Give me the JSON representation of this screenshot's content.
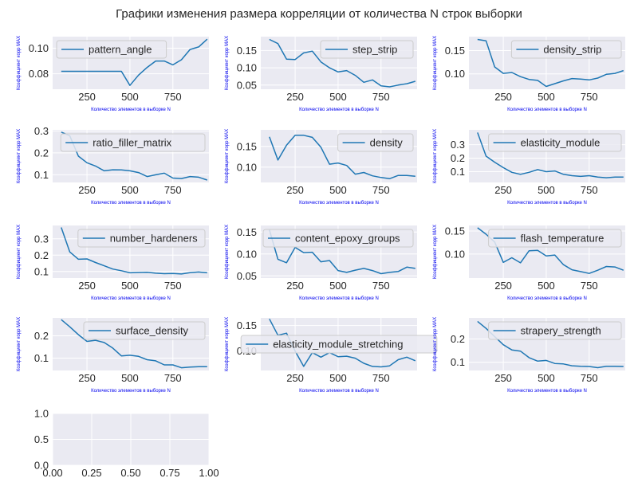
{
  "figure": {
    "suptitle": "Графики изменения размера корреляции от количества  N строк выборки",
    "style": {
      "panel_bg": "#eaeaf2",
      "grid": "#ffffff",
      "line": "#1f77b4",
      "label_color": "#0000ee",
      "tick_color": "#262626"
    }
  },
  "chart_data": [
    {
      "type": "line",
      "xlabel": "Количество элементов в выборке N",
      "ylabel": "Коэффициент корр MAX",
      "xlim": [
        50,
        960
      ],
      "ylim": [
        0.068,
        0.109
      ],
      "xticks": [
        250,
        500,
        750
      ],
      "yticks": [
        0.08,
        0.1
      ],
      "ytick_labels": [
        "0.08",
        "0.10"
      ],
      "legend_loc": "top-left",
      "series": [
        {
          "name": "pattern_angle",
          "x": [
            100,
            150,
            200,
            250,
            300,
            350,
            400,
            450,
            500,
            550,
            600,
            650,
            700,
            750,
            800,
            850,
            900,
            950
          ],
          "y": [
            0.082,
            0.082,
            0.082,
            0.082,
            0.082,
            0.082,
            0.082,
            0.082,
            0.071,
            0.079,
            0.085,
            0.09,
            0.09,
            0.087,
            0.091,
            0.099,
            0.101,
            0.107
          ]
        }
      ]
    },
    {
      "type": "line",
      "xlabel": "Количество элементов в выборке N",
      "ylabel": "Коэффициент корр MAX",
      "xlim": [
        50,
        960
      ],
      "ylim": [
        0.038,
        0.19
      ],
      "xticks": [
        250,
        500,
        750
      ],
      "yticks": [
        0.05,
        0.1,
        0.15
      ],
      "ytick_labels": [
        "0.05",
        "0.10",
        "0.15"
      ],
      "legend_loc": "top-right",
      "series": [
        {
          "name": "step_strip",
          "x": [
            100,
            150,
            200,
            250,
            300,
            350,
            400,
            450,
            500,
            550,
            600,
            650,
            700,
            750,
            800,
            850,
            900,
            950
          ],
          "y": [
            0.182,
            0.17,
            0.125,
            0.124,
            0.143,
            0.148,
            0.117,
            0.1,
            0.088,
            0.092,
            0.078,
            0.058,
            0.065,
            0.048,
            0.045,
            0.05,
            0.054,
            0.061
          ]
        }
      ]
    },
    {
      "type": "line",
      "xlabel": "Количество элементов в выборке N",
      "ylabel": "Коэффициент корр MAX",
      "xlim": [
        50,
        960
      ],
      "ylim": [
        0.067,
        0.18
      ],
      "xticks": [
        250,
        500,
        750
      ],
      "yticks": [
        0.1,
        0.15
      ],
      "ytick_labels": [
        "0.10",
        "0.15"
      ],
      "legend_loc": "top-right",
      "series": [
        {
          "name": "density_strip",
          "x": [
            100,
            150,
            200,
            250,
            300,
            350,
            400,
            450,
            500,
            550,
            600,
            650,
            700,
            750,
            800,
            850,
            900,
            950
          ],
          "y": [
            0.174,
            0.171,
            0.115,
            0.101,
            0.103,
            0.094,
            0.088,
            0.086,
            0.073,
            0.079,
            0.085,
            0.09,
            0.089,
            0.087,
            0.091,
            0.099,
            0.101,
            0.107
          ]
        }
      ]
    },
    {
      "type": "line",
      "xlabel": "Количество элементов в выборке N",
      "ylabel": "Коэффициент корр MAX",
      "xlim": [
        50,
        960
      ],
      "ylim": [
        0.065,
        0.305
      ],
      "xticks": [
        250,
        500,
        750
      ],
      "yticks": [
        0.1,
        0.2,
        0.3
      ],
      "ytick_labels": [
        "0.1",
        "0.2",
        "0.3"
      ],
      "legend_loc": "top-right",
      "series": [
        {
          "name": "ratio_filler_matrix",
          "x": [
            100,
            150,
            200,
            250,
            300,
            350,
            400,
            450,
            500,
            550,
            600,
            650,
            700,
            750,
            800,
            850,
            900,
            950
          ],
          "y": [
            0.295,
            0.278,
            0.185,
            0.155,
            0.14,
            0.118,
            0.123,
            0.122,
            0.118,
            0.11,
            0.092,
            0.1,
            0.107,
            0.085,
            0.083,
            0.092,
            0.089,
            0.076
          ]
        }
      ]
    },
    {
      "type": "line",
      "xlabel": "Количество элементов в выборке N",
      "ylabel": "Коэффициент корр MAX",
      "xlim": [
        50,
        960
      ],
      "ylim": [
        0.063,
        0.19
      ],
      "xticks": [
        250,
        500,
        750
      ],
      "yticks": [
        0.1,
        0.15
      ],
      "ytick_labels": [
        "0.10",
        "0.15"
      ],
      "legend_loc": "top-right",
      "series": [
        {
          "name": "density",
          "x": [
            100,
            150,
            200,
            250,
            300,
            350,
            400,
            450,
            500,
            550,
            600,
            650,
            700,
            750,
            800,
            850,
            900,
            950
          ],
          "y": [
            0.173,
            0.117,
            0.153,
            0.177,
            0.177,
            0.172,
            0.148,
            0.107,
            0.11,
            0.104,
            0.083,
            0.087,
            0.079,
            0.075,
            0.072,
            0.08,
            0.08,
            0.078
          ]
        }
      ]
    },
    {
      "type": "line",
      "xlabel": "Количество элементов в выборке N",
      "ylabel": "Коэффициент корр MAX",
      "xlim": [
        50,
        960
      ],
      "ylim": [
        0.02,
        0.41
      ],
      "xticks": [
        250,
        500,
        750
      ],
      "yticks": [
        0.1,
        0.2,
        0.3
      ],
      "ytick_labels": [
        "0.1",
        "0.2",
        "0.3"
      ],
      "legend_loc": "top-right",
      "series": [
        {
          "name": "elasticity_module",
          "x": [
            100,
            150,
            200,
            250,
            300,
            350,
            400,
            450,
            500,
            550,
            600,
            650,
            700,
            750,
            800,
            850,
            900,
            950
          ],
          "y": [
            0.39,
            0.215,
            0.17,
            0.13,
            0.095,
            0.08,
            0.095,
            0.115,
            0.1,
            0.105,
            0.08,
            0.07,
            0.065,
            0.07,
            0.06,
            0.055,
            0.06,
            0.06
          ]
        }
      ]
    },
    {
      "type": "line",
      "xlabel": "Количество элементов в выборке N",
      "ylabel": "Коэффициент корр MAX",
      "xlim": [
        50,
        960
      ],
      "ylim": [
        0.06,
        0.382
      ],
      "xticks": [
        250,
        500,
        750
      ],
      "yticks": [
        0.1,
        0.2,
        0.3
      ],
      "ytick_labels": [
        "0.1",
        "0.2",
        "0.3"
      ],
      "legend_loc": "top-right",
      "series": [
        {
          "name": "number_hardeners",
          "x": [
            100,
            150,
            200,
            250,
            300,
            350,
            400,
            450,
            500,
            550,
            600,
            650,
            700,
            750,
            800,
            850,
            900,
            950
          ],
          "y": [
            0.37,
            0.22,
            0.175,
            0.177,
            0.155,
            0.135,
            0.115,
            0.105,
            0.092,
            0.094,
            0.095,
            0.09,
            0.087,
            0.088,
            0.085,
            0.093,
            0.097,
            0.092
          ]
        }
      ]
    },
    {
      "type": "line",
      "xlabel": "Количество элементов в выборке N",
      "ylabel": "Коэффициент корр MAX",
      "xlim": [
        50,
        960
      ],
      "ylim": [
        0.045,
        0.165
      ],
      "xticks": [
        250,
        500,
        750
      ],
      "yticks": [
        0.05,
        0.1,
        0.15
      ],
      "ytick_labels": [
        "0.05",
        "0.10",
        "0.15"
      ],
      "legend_loc": "top-right",
      "series": [
        {
          "name": "content_epoxy_groups",
          "x": [
            100,
            150,
            200,
            250,
            300,
            350,
            400,
            450,
            500,
            550,
            600,
            650,
            700,
            750,
            800,
            850,
            900,
            950
          ],
          "y": [
            0.155,
            0.088,
            0.08,
            0.115,
            0.103,
            0.104,
            0.082,
            0.085,
            0.062,
            0.058,
            0.063,
            0.067,
            0.062,
            0.055,
            0.058,
            0.06,
            0.07,
            0.067
          ]
        }
      ]
    },
    {
      "type": "line",
      "xlabel": "Количество элементов в выборке N",
      "ylabel": "Коэффициент корр MAX",
      "xlim": [
        50,
        960
      ],
      "ylim": [
        0.048,
        0.162
      ],
      "xticks": [
        250,
        500,
        750
      ],
      "yticks": [
        0.1,
        0.15
      ],
      "ytick_labels": [
        "0.10",
        "0.15"
      ],
      "legend_loc": "top-right",
      "series": [
        {
          "name": "flash_temperature",
          "x": [
            100,
            150,
            200,
            250,
            300,
            350,
            400,
            450,
            500,
            550,
            600,
            650,
            700,
            750,
            800,
            850,
            900,
            950
          ],
          "y": [
            0.157,
            0.143,
            0.126,
            0.082,
            0.092,
            0.081,
            0.107,
            0.108,
            0.096,
            0.098,
            0.077,
            0.066,
            0.062,
            0.058,
            0.065,
            0.073,
            0.072,
            0.065
          ]
        }
      ]
    },
    {
      "type": "line",
      "xlabel": "Количество элементов в выборке N",
      "ylabel": "Коэффициент корр MAX",
      "xlim": [
        50,
        960
      ],
      "ylim": [
        0.045,
        0.28
      ],
      "xticks": [
        250,
        500,
        750
      ],
      "yticks": [
        0.1,
        0.2
      ],
      "ytick_labels": [
        "0.1",
        "0.2"
      ],
      "legend_loc": "top-right",
      "series": [
        {
          "name": "surface_density",
          "x": [
            100,
            150,
            200,
            250,
            300,
            350,
            400,
            450,
            500,
            550,
            600,
            650,
            700,
            750,
            800,
            850,
            900,
            950
          ],
          "y": [
            0.272,
            0.24,
            0.205,
            0.175,
            0.18,
            0.17,
            0.145,
            0.11,
            0.113,
            0.108,
            0.093,
            0.088,
            0.07,
            0.07,
            0.057,
            0.06,
            0.062,
            0.062
          ]
        }
      ]
    },
    {
      "type": "line",
      "xlabel": "Количество элементов в выборке N",
      "ylabel": "Коэффициент корр MAX",
      "xlim": [
        50,
        960
      ],
      "ylim": [
        0.062,
        0.165
      ],
      "xticks": [
        250,
        500,
        750
      ],
      "yticks": [
        0.1,
        0.15
      ],
      "ytick_labels": [
        "0.10",
        "0.15"
      ],
      "legend_loc": "center",
      "series": [
        {
          "name": "elasticity_module_stretching",
          "x": [
            100,
            150,
            200,
            250,
            300,
            350,
            400,
            450,
            500,
            550,
            600,
            650,
            700,
            750,
            800,
            850,
            900,
            950
          ],
          "y": [
            0.163,
            0.131,
            0.135,
            0.1,
            0.07,
            0.097,
            0.088,
            0.097,
            0.089,
            0.09,
            0.086,
            0.076,
            0.07,
            0.069,
            0.071,
            0.083,
            0.088,
            0.081
          ]
        }
      ]
    },
    {
      "type": "line",
      "xlabel": "Количество элементов в выборке N",
      "ylabel": "Коэффициент корр MAX",
      "xlim": [
        50,
        960
      ],
      "ylim": [
        0.065,
        0.29
      ],
      "xticks": [
        250,
        500,
        750
      ],
      "yticks": [
        0.1,
        0.2
      ],
      "ytick_labels": [
        "0.1",
        "0.2"
      ],
      "legend_loc": "top-right",
      "series": [
        {
          "name": "strapery_strength",
          "x": [
            100,
            150,
            200,
            250,
            300,
            350,
            400,
            450,
            500,
            550,
            600,
            650,
            700,
            750,
            800,
            850,
            900,
            950
          ],
          "y": [
            0.275,
            0.245,
            0.21,
            0.175,
            0.153,
            0.148,
            0.12,
            0.105,
            0.108,
            0.095,
            0.093,
            0.085,
            0.083,
            0.082,
            0.077,
            0.083,
            0.083,
            0.082
          ]
        }
      ]
    },
    {
      "type": "empty",
      "xlabel": "",
      "ylabel": "",
      "xlim": [
        0,
        1
      ],
      "ylim": [
        0,
        1
      ],
      "xticks": [
        0,
        0.25,
        0.5,
        0.75,
        1
      ],
      "xtick_labels": [
        "0.00",
        "0.25",
        "0.50",
        "0.75",
        "1.00"
      ],
      "yticks": [
        0,
        0.5,
        1
      ],
      "ytick_labels": [
        "0.0",
        "0.5",
        "1.0"
      ],
      "series": []
    }
  ]
}
